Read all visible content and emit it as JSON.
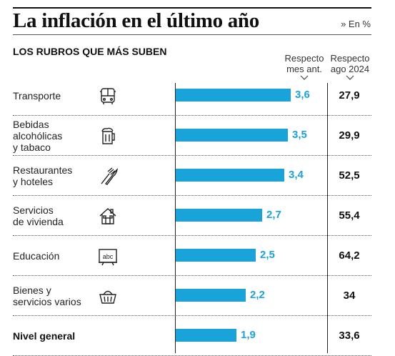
{
  "title": "La inflación en el último año",
  "unit_label": "» En %",
  "subtitle": "LOS RUBROS QUE MÁS SUBEN",
  "column_headers": {
    "month": [
      "Respecto",
      "mes ant."
    ],
    "year": [
      "Respecto",
      "ago 2024"
    ]
  },
  "colors": {
    "bar": "#1aa3d9",
    "value": "#1aa3d9",
    "text": "#111111"
  },
  "chart_data": {
    "type": "bar",
    "orientation": "horizontal",
    "categories": [
      "Transporte",
      "Bebidas alcohólicas y tabaco",
      "Restaurantes y hoteles",
      "Servicios de vivienda",
      "Educación",
      "Bienes y servicios varios",
      "Nivel general"
    ],
    "series": [
      {
        "values": [
          3.6,
          3.5,
          3.4,
          2.7,
          2.5,
          2.2,
          1.9
        ]
      }
    ],
    "annual_values": [
      "27,9",
      "29,9",
      "52,5",
      "55,4",
      "64,2",
      "34",
      "33,6"
    ],
    "value_labels": [
      "3,6",
      "3,5",
      "3,4",
      "2,7",
      "2,5",
      "2,2",
      "1,9"
    ],
    "xlim": [
      0,
      3.6
    ],
    "grid": false,
    "legend": "none"
  },
  "rows": [
    {
      "label_lines": [
        "Transporte"
      ],
      "icon": "bus-icon",
      "bold": false
    },
    {
      "label_lines": [
        "Bebidas",
        "alcohólicas",
        "y tabaco"
      ],
      "icon": "beer-mug-icon",
      "bold": false
    },
    {
      "label_lines": [
        "Restaurantes",
        "y hoteles"
      ],
      "icon": "fork-knife-icon",
      "bold": false
    },
    {
      "label_lines": [
        "Servicios",
        "de vivienda"
      ],
      "icon": "house-icon",
      "bold": false
    },
    {
      "label_lines": [
        "Educación"
      ],
      "icon": "blackboard-icon",
      "icon_text": "abc",
      "bold": false
    },
    {
      "label_lines": [
        "Bienes y",
        "servicios varios"
      ],
      "icon": "basket-icon",
      "bold": false
    },
    {
      "label_lines": [
        "Nivel general"
      ],
      "icon": "",
      "bold": true
    }
  ]
}
